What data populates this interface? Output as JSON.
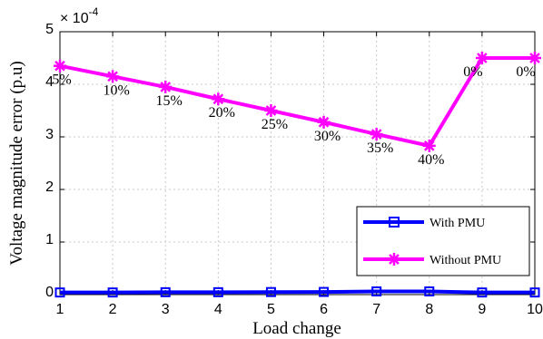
{
  "chart_data": {
    "type": "line",
    "xlabel": "Load change",
    "ylabel": "Voltage magnitude error (p.u)",
    "y_multiplier": "× 10",
    "y_exponent": "-4",
    "xlim": [
      1,
      10
    ],
    "ylim": [
      0,
      5
    ],
    "x_ticks": [
      "1",
      "2",
      "3",
      "4",
      "5",
      "6",
      "7",
      "8",
      "9",
      "10"
    ],
    "y_ticks": [
      "0",
      "1",
      "2",
      "3",
      "4",
      "5"
    ],
    "grid": true,
    "legend_position": "lower-right",
    "x": [
      1,
      2,
      3,
      4,
      5,
      6,
      7,
      8,
      9,
      10
    ],
    "series": [
      {
        "name": "With PMU",
        "color": "#0000ff",
        "marker": "square",
        "values": [
          0.04,
          0.04,
          0.045,
          0.045,
          0.048,
          0.05,
          0.06,
          0.06,
          0.04,
          0.04
        ]
      },
      {
        "name": "Without PMU",
        "color": "#ff00ff",
        "marker": "asterisk",
        "values": [
          4.35,
          4.15,
          3.95,
          3.72,
          3.5,
          3.28,
          3.05,
          2.83,
          4.5,
          4.5
        ]
      }
    ],
    "point_labels": [
      "5%",
      "10%",
      "15%",
      "20%",
      "25%",
      "30%",
      "35%",
      "40%",
      "0%",
      "0%"
    ]
  }
}
